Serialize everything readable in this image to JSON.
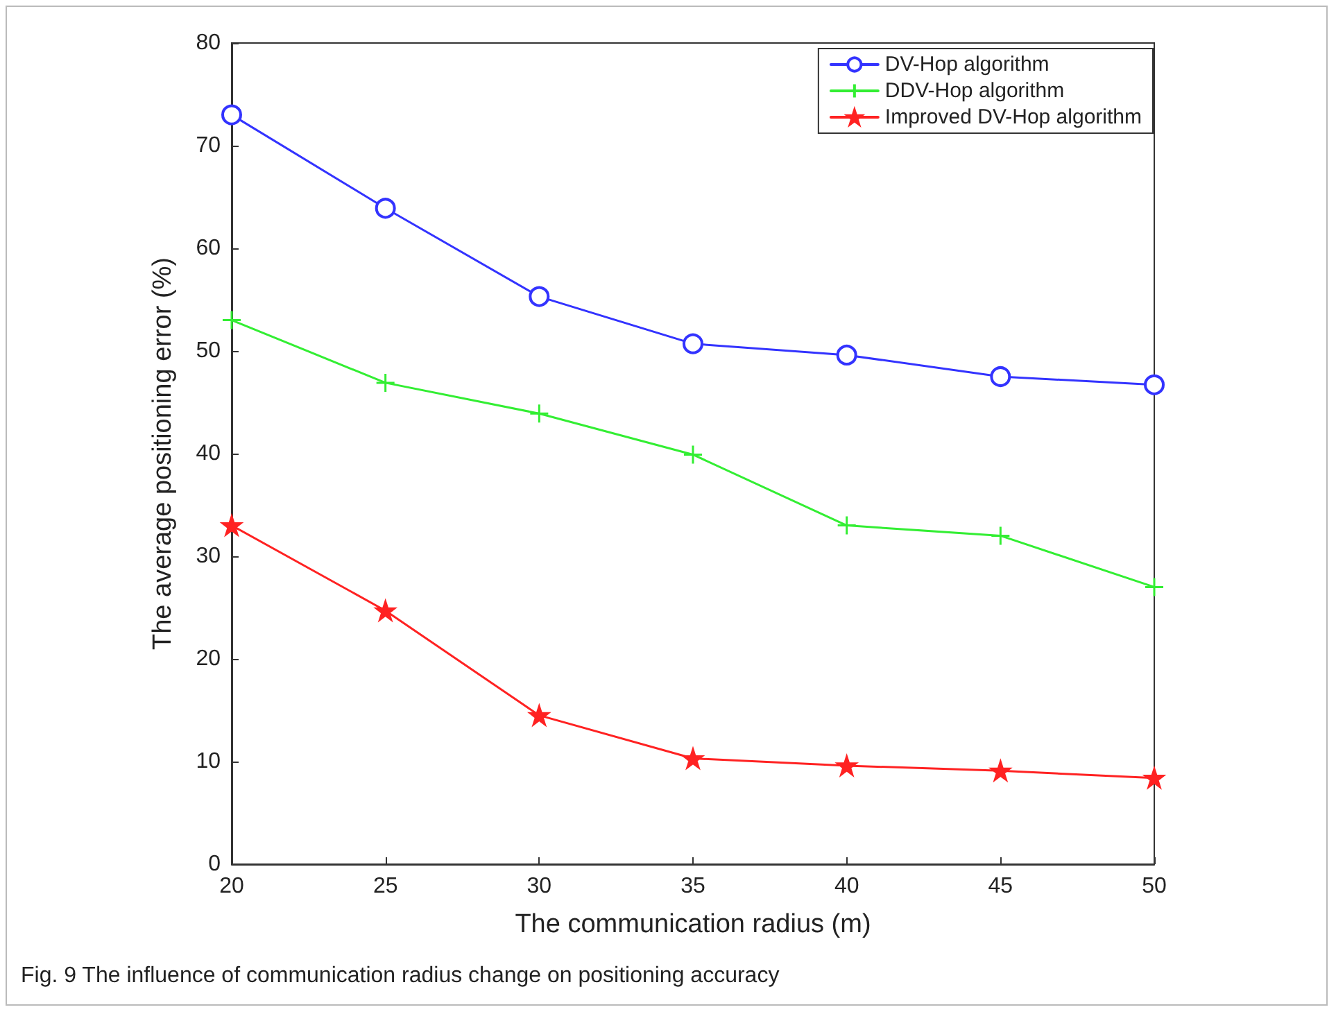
{
  "chart_data": {
    "type": "line",
    "xlabel": "The communication radius (m)",
    "ylabel": "The average positioning error (%)",
    "x": [
      20,
      25,
      30,
      35,
      40,
      45,
      50
    ],
    "series": [
      {
        "name": "DV-Hop algorithm",
        "color": "#3333ff",
        "marker": "circle",
        "values": [
          73,
          63.9,
          55.3,
          50.7,
          49.6,
          47.5,
          46.7
        ]
      },
      {
        "name": "DDV-Hop algorithm",
        "color": "#33ee33",
        "marker": "cross",
        "values": [
          53,
          46.9,
          43.9,
          39.9,
          33,
          32,
          27
        ]
      },
      {
        "name": "Improved DV-Hop algorithm",
        "color": "#ff2222",
        "marker": "star",
        "values": [
          33,
          24.7,
          14.5,
          10.3,
          9.6,
          9.1,
          8.4
        ]
      }
    ],
    "xlim": [
      20,
      50
    ],
    "xticks": [
      20,
      25,
      30,
      35,
      40,
      45,
      50
    ],
    "ylim": [
      0,
      80
    ],
    "yticks": [
      0,
      10,
      20,
      30,
      40,
      50,
      60,
      70,
      80
    ],
    "grid": false,
    "legend": "top right",
    "line_style": "solid",
    "annotations": [
      "Fig. 9 The influence of communication radius change on positioning accuracy"
    ]
  }
}
